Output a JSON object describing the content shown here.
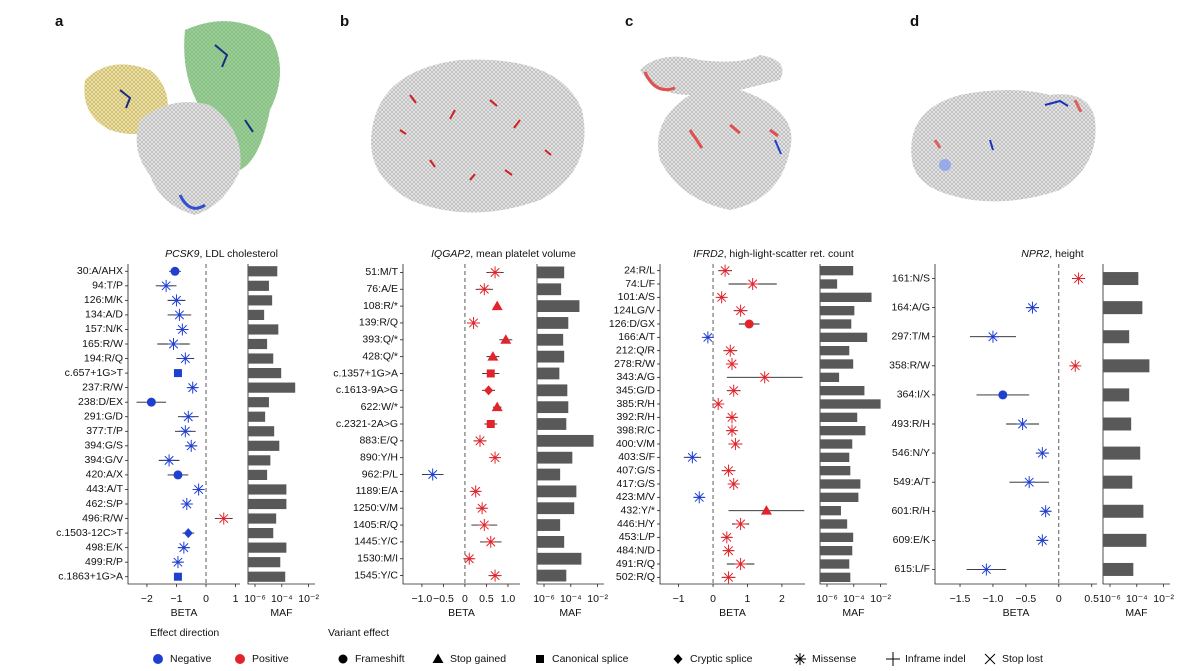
{
  "chart_data": [
    {
      "type": "forest",
      "panel": "a",
      "gene": "PCSK9",
      "title_rest": ", LDL cholesterol",
      "categories": [
        "30:A/AHX",
        "94:T/P",
        "126:M/K",
        "134:A/D",
        "157:N/K",
        "165:R/W",
        "194:R/Q",
        "c.657+1G>T",
        "237:R/W",
        "238:D/EX",
        "291:G/D",
        "377:T/P",
        "394:G/S",
        "394:G/V",
        "420:A/X",
        "443:A/T",
        "462:S/P",
        "496:R/W",
        "c.1503-12C>T",
        "498:E/K",
        "499:R/P",
        "c.1863+1G>A"
      ],
      "values": [
        -1.05,
        -1.35,
        -1.0,
        -0.9,
        -0.8,
        -1.1,
        -0.7,
        -0.95,
        -0.45,
        -1.85,
        -0.6,
        -0.7,
        -0.5,
        -1.25,
        -0.95,
        -0.25,
        -0.65,
        0.6,
        -0.6,
        -0.75,
        -0.95,
        -0.95
      ],
      "errors": [
        0.2,
        0.35,
        0.3,
        0.4,
        0.2,
        0.55,
        0.3,
        0,
        0.15,
        0.5,
        0.35,
        0.35,
        0.2,
        0.35,
        0.35,
        0.15,
        0.2,
        0.3,
        0.2,
        0.2,
        0.15,
        0.1
      ],
      "markers": [
        "circle",
        "asterisk",
        "asterisk",
        "asterisk",
        "asterisk",
        "asterisk",
        "asterisk",
        "square",
        "asterisk",
        "circle",
        "asterisk",
        "asterisk",
        "asterisk",
        "asterisk",
        "circle",
        "asterisk",
        "asterisk",
        "asterisk",
        "diamond",
        "asterisk",
        "asterisk",
        "square"
      ],
      "xlabel": "BETA",
      "xlim": [
        -2.64,
        1.15
      ],
      "xticks": [
        {
          "value": -2,
          "label": "−2"
        },
        {
          "value": -1,
          "label": "−1"
        },
        0,
        1
      ],
      "maf": {
        "type": "bar",
        "xlabel": "MAF",
        "log_scale": true,
        "color": "#595959",
        "xlim": [
          3e-07,
          0.03
        ],
        "xticks": [
          {
            "value": 1e-06,
            "label": "10⁻⁶"
          },
          {
            "value": 0.0001,
            "label": "10⁻⁴"
          },
          {
            "value": 0.01,
            "label": "10⁻²"
          }
        ],
        "values": [
          4.6e-05,
          1.1e-05,
          1.9e-05,
          4.8e-06,
          5.5e-05,
          8e-06,
          2.3e-05,
          9e-05,
          0.001,
          1.1e-05,
          5.7e-06,
          2.7e-05,
          6.5e-05,
          1.4e-05,
          8e-06,
          0.00022,
          0.00022,
          3.8e-05,
          2.3e-05,
          0.00022,
          7.7e-05,
          0.00018
        ]
      }
    },
    {
      "type": "forest",
      "panel": "b",
      "gene": "IQGAP2",
      "title_rest": ", mean platelet volume",
      "categories": [
        "51:M/T",
        "76:A/E",
        "108:R/*",
        "139:R/Q",
        "393:Q/*",
        "428:Q/*",
        "c.1357+1G>A",
        "c.1613-9A>G",
        "622:W/*",
        "c.2321-2A>G",
        "883:E/Q",
        "890:Y/H",
        "962:P/L",
        "1189:E/A",
        "1250:V/M",
        "1405:R/Q",
        "1445:Y/C",
        "1530:M/I",
        "1545:Y/C"
      ],
      "values": [
        0.7,
        0.45,
        0.75,
        0.2,
        0.95,
        0.65,
        0.6,
        0.55,
        0.75,
        0.6,
        0.35,
        0.7,
        -0.75,
        0.25,
        0.4,
        0.45,
        0.6,
        0.1,
        0.7
      ],
      "errors": [
        0.2,
        0.2,
        0,
        0.15,
        0.15,
        0.15,
        0.2,
        0.15,
        0.1,
        0.15,
        0.15,
        0.1,
        0.25,
        0.1,
        0.1,
        0.3,
        0.25,
        0.1,
        0.15
      ],
      "markers": [
        "asterisk",
        "asterisk",
        "triangle",
        "asterisk",
        "triangle",
        "triangle",
        "square",
        "diamond",
        "triangle",
        "square",
        "asterisk",
        "asterisk",
        "asterisk",
        "asterisk",
        "asterisk",
        "asterisk",
        "asterisk",
        "asterisk",
        "asterisk"
      ],
      "xlabel": "BETA",
      "xlim": [
        -1.44,
        1.28
      ],
      "xticks": [
        {
          "value": -1,
          "label": "−1.0"
        },
        {
          "value": -0.5,
          "label": "−0.5"
        },
        0,
        0.5,
        {
          "value": 1,
          "label": "1.0"
        }
      ],
      "maf": {
        "type": "bar",
        "xlabel": "MAF",
        "log_scale": true,
        "color": "#595959",
        "xlim": [
          3e-07,
          0.03
        ],
        "xticks": [
          {
            "value": 1e-06,
            "label": "10⁻⁶"
          },
          {
            "value": 0.0001,
            "label": "10⁻⁴"
          },
          {
            "value": 0.01,
            "label": "10⁻²"
          }
        ],
        "values": [
          3.2e-05,
          1.9e-05,
          0.00044,
          6.5e-05,
          2.7e-05,
          3.2e-05,
          1.4e-05,
          5.5e-05,
          6.5e-05,
          4.6e-05,
          0.005,
          0.00013,
          1.6e-05,
          0.00026,
          0.00018,
          1.6e-05,
          3.2e-05,
          0.00062,
          4.6e-05
        ]
      }
    },
    {
      "type": "forest",
      "panel": "c",
      "gene": "IFRD2",
      "title_rest": ", high-light-scatter ret. count",
      "categories": [
        "24:R/L",
        "74:L/F",
        "101:A/S",
        "124LG/V",
        "126:D/GX",
        "166:A/T",
        "212:Q/R",
        "278:R/W",
        "343:A/G",
        "345:G/D",
        "385:R/H",
        "392:R/H",
        "398:R/C",
        "400:V/M",
        "403:S/F",
        "407:G/S",
        "417:G/S",
        "423:M/V",
        "432:Y/*",
        "446:H/Y",
        "453:L/P",
        "484:N/D",
        "491:R/Q",
        "502:R/Q"
      ],
      "values": [
        0.35,
        1.15,
        0.25,
        0.8,
        1.05,
        -0.15,
        0.5,
        0.55,
        1.5,
        0.6,
        0.15,
        0.55,
        0.55,
        0.65,
        -0.6,
        0.45,
        0.6,
        -0.4,
        1.55,
        0.8,
        0.4,
        0.45,
        0.8,
        0.45
      ],
      "errors": [
        0.2,
        0.7,
        0.1,
        0.2,
        0.3,
        0.1,
        0.2,
        0.15,
        1.1,
        0.2,
        0.1,
        0.15,
        0.15,
        0.2,
        0.25,
        0.2,
        0.15,
        0.15,
        1.1,
        0.25,
        0.15,
        0.15,
        0.4,
        0.2
      ],
      "markers": [
        "asterisk",
        "asterisk",
        "asterisk",
        "asterisk",
        "circle",
        "asterisk",
        "asterisk",
        "asterisk",
        "asterisk",
        "asterisk",
        "asterisk",
        "asterisk",
        "asterisk",
        "asterisk",
        "asterisk",
        "asterisk",
        "asterisk",
        "asterisk",
        "triangle",
        "asterisk",
        "asterisk",
        "asterisk",
        "asterisk",
        "asterisk"
      ],
      "xlabel": "BETA",
      "xlim": [
        -1.54,
        2.67
      ],
      "xticks": [
        {
          "value": -1,
          "label": "−1"
        },
        0,
        1,
        2
      ],
      "maf": {
        "type": "bar",
        "xlabel": "MAF",
        "log_scale": true,
        "color": "#595959",
        "xlim": [
          3e-07,
          0.03
        ],
        "xticks": [
          {
            "value": 1e-06,
            "label": "10⁻⁶"
          },
          {
            "value": 0.0001,
            "label": "10⁻⁴"
          },
          {
            "value": 0.01,
            "label": "10⁻²"
          }
        ],
        "values": [
          9e-05,
          5.7e-06,
          0.0021,
          0.00011,
          6.5e-05,
          0.001,
          4.6e-05,
          9e-05,
          8e-06,
          0.00062,
          0.01,
          0.00018,
          0.00074,
          7.7e-05,
          4.6e-05,
          5.5e-05,
          0.00031,
          0.00022,
          1.1e-05,
          3.2e-05,
          9e-05,
          7.7e-05,
          4.6e-05,
          5.5e-05
        ]
      }
    },
    {
      "type": "forest",
      "panel": "d",
      "gene": "NPR2",
      "title_rest": ", height",
      "categories": [
        "161:N/S",
        "164:A/G",
        "297:T/M",
        "358:R/W",
        "364:I/X",
        "493:R/H",
        "546:N/Y",
        "549:A/T",
        "601:R/H",
        "609:E/K",
        "615:L/F"
      ],
      "values": [
        0.3,
        -0.4,
        -1.0,
        0.25,
        -0.85,
        -0.55,
        -0.25,
        -0.45,
        -0.2,
        -0.25,
        -1.1
      ],
      "errors": [
        0.1,
        0.1,
        0.35,
        0.05,
        0.4,
        0.25,
        0.1,
        0.3,
        0.08,
        0.08,
        0.3
      ],
      "markers": [
        "asterisk",
        "asterisk",
        "asterisk",
        "asterisk",
        "circle",
        "asterisk",
        "asterisk",
        "asterisk",
        "asterisk",
        "asterisk",
        "asterisk"
      ],
      "xlabel": "BETA",
      "xlim": [
        -1.88,
        0.58
      ],
      "xticks": [
        {
          "value": -1.5,
          "label": "−1.5"
        },
        {
          "value": -1,
          "label": "−1.0"
        },
        {
          "value": -0.5,
          "label": "−0.5"
        },
        0,
        0.5
      ],
      "maf": {
        "type": "bar",
        "xlabel": "MAF",
        "log_scale": true,
        "color": "#595959",
        "xlim": [
          3e-07,
          0.03
        ],
        "xticks": [
          {
            "value": 1e-06,
            "label": "10⁻⁶"
          },
          {
            "value": 0.0001,
            "label": "10⁻⁴"
          },
          {
            "value": 0.01,
            "label": "10⁻²"
          }
        ],
        "values": [
          0.00013,
          0.00026,
          2.7e-05,
          0.00087,
          2.7e-05,
          3.8e-05,
          0.00018,
          4.6e-05,
          0.00031,
          0.00052,
          5.5e-05
        ]
      }
    }
  ],
  "legend": {
    "direction_title": "Effect direction",
    "effect_title": "Variant effect",
    "directions": [
      {
        "name": "Negative",
        "color": "#1f3fd1"
      },
      {
        "name": "Positive",
        "color": "#e3232b"
      }
    ],
    "effects": [
      {
        "name": "Frameshift",
        "marker": "circle"
      },
      {
        "name": "Stop gained",
        "marker": "triangle"
      },
      {
        "name": "Canonical splice",
        "marker": "square"
      },
      {
        "name": "Cryptic splice",
        "marker": "diamond"
      },
      {
        "name": "Missense",
        "marker": "asterisk"
      },
      {
        "name": "Inframe indel",
        "marker": "plus"
      },
      {
        "name": "Stop lost",
        "marker": "cross"
      }
    ]
  }
}
